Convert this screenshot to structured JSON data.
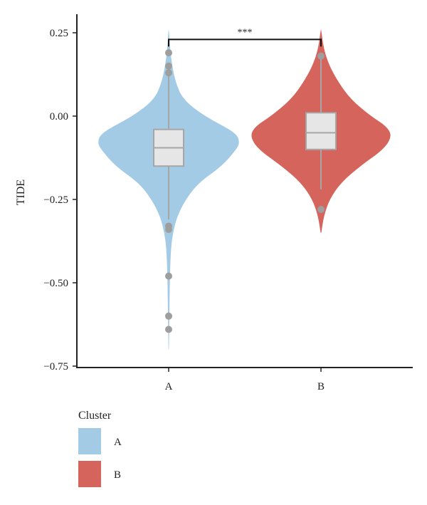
{
  "chart_data": {
    "type": "violin",
    "ylabel": "TIDE",
    "xlabel": "",
    "ylim": [
      -0.75,
      0.25
    ],
    "yticks": [
      0.25,
      0.0,
      -0.25,
      -0.5,
      -0.75
    ],
    "ytick_labels": [
      "0.25",
      "0.00",
      "−0.25",
      "−0.50",
      "−0.75"
    ],
    "categories": [
      "A",
      "B"
    ],
    "groups": [
      {
        "name": "A",
        "color": "#a3cbe6",
        "violin_range": [
          -0.7,
          0.26
        ],
        "violin_profile": [
          [
            -0.7,
            0.003
          ],
          [
            -0.6,
            0.01
          ],
          [
            -0.5,
            0.015
          ],
          [
            -0.4,
            0.03
          ],
          [
            -0.35,
            0.06
          ],
          [
            -0.3,
            0.12
          ],
          [
            -0.25,
            0.24
          ],
          [
            -0.2,
            0.42
          ],
          [
            -0.15,
            0.75
          ],
          [
            -0.1,
            0.95
          ],
          [
            -0.08,
            1.0
          ],
          [
            -0.05,
            0.95
          ],
          [
            0.0,
            0.5
          ],
          [
            0.05,
            0.2
          ],
          [
            0.1,
            0.1
          ],
          [
            0.15,
            0.05
          ],
          [
            0.2,
            0.02
          ],
          [
            0.26,
            0.003
          ]
        ],
        "median": -0.095,
        "q1": -0.15,
        "q3": -0.04,
        "whisker_low": -0.31,
        "whisker_high": 0.12,
        "outliers": [
          0.19,
          0.15,
          0.13,
          -0.33,
          -0.34,
          -0.48,
          -0.6,
          -0.64
        ]
      },
      {
        "name": "B",
        "color": "#d4645c",
        "violin_range": [
          -0.35,
          0.26
        ],
        "violin_profile": [
          [
            -0.35,
            0.005
          ],
          [
            -0.3,
            0.04
          ],
          [
            -0.25,
            0.12
          ],
          [
            -0.2,
            0.28
          ],
          [
            -0.15,
            0.55
          ],
          [
            -0.1,
            0.88
          ],
          [
            -0.06,
            1.0
          ],
          [
            -0.03,
            0.92
          ],
          [
            0.0,
            0.7
          ],
          [
            0.05,
            0.42
          ],
          [
            0.1,
            0.25
          ],
          [
            0.15,
            0.12
          ],
          [
            0.2,
            0.04
          ],
          [
            0.26,
            0.003
          ]
        ],
        "median": -0.05,
        "q1": -0.1,
        "q3": 0.01,
        "whisker_low": -0.22,
        "whisker_high": 0.17,
        "outliers": [
          0.18,
          -0.28
        ]
      }
    ],
    "significance": {
      "label": "***",
      "between": [
        "A",
        "B"
      ],
      "y": 0.23
    },
    "legend": {
      "title": "Cluster",
      "position": "bottom-left",
      "items": [
        {
          "label": "A",
          "color": "#a3cbe6"
        },
        {
          "label": "B",
          "color": "#d4645c"
        }
      ]
    },
    "box_fill": "#e6e6e6",
    "box_stroke": "#a6a6a6",
    "outlier_color": "#9e9e9e",
    "grid": false
  }
}
